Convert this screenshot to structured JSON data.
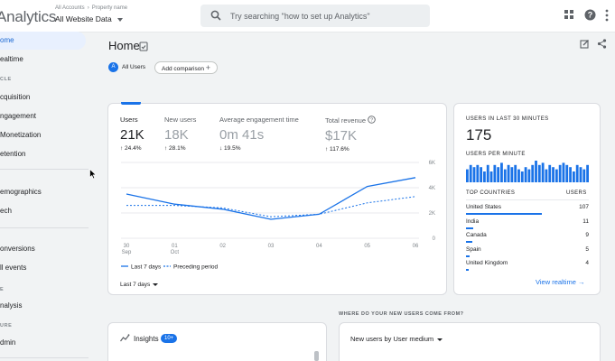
{
  "topbar": {
    "app_title": "Analytics",
    "breadcrumb": [
      "All Accounts",
      "Property name"
    ],
    "property": "All Website Data",
    "search_placeholder": "Try searching \"how to set up Analytics\"",
    "icons": [
      "apps-grid-icon",
      "help-icon",
      "account-menu-icon"
    ]
  },
  "sidebar": {
    "items": [
      {
        "label": "ome",
        "active": true
      },
      {
        "label": "ealtime"
      },
      {
        "label": "cquisition"
      },
      {
        "label": "ngagement"
      },
      {
        "label": "Monetization"
      },
      {
        "label": "etention"
      },
      {
        "label": "emographics"
      },
      {
        "label": "ech"
      },
      {
        "label": "onversions"
      },
      {
        "label": "ll events"
      },
      {
        "label": "nalysis"
      },
      {
        "label": "dmin"
      }
    ],
    "sections": [
      "CLE",
      "E",
      "URE"
    ]
  },
  "header": {
    "title": "Home",
    "segment_badge": "A",
    "segment_label": "All Users",
    "add_comparison": "Add comparison"
  },
  "metrics": [
    {
      "label": "Users",
      "value": "21K",
      "change": "↑ 24.4%"
    },
    {
      "label": "New users",
      "value": "18K",
      "change": "↑ 28.1%"
    },
    {
      "label": "Average engagement time",
      "value": "0m 41s",
      "change": "↓ 19.5%"
    },
    {
      "label": "Total revenue",
      "value": "$17K",
      "change": "↑ 117.6%"
    }
  ],
  "chart_data": {
    "type": "line",
    "x": [
      "30 Sep",
      "01 Oct",
      "02",
      "03",
      "04",
      "05",
      "06"
    ],
    "x_top": [
      "30",
      "01",
      "02",
      "03",
      "04",
      "05",
      "06"
    ],
    "x_bottom": [
      "Sep",
      "Oct",
      "",
      "",
      "",
      "",
      ""
    ],
    "ylim": [
      0,
      6000
    ],
    "y_ticks": [
      0,
      2000,
      4000,
      6000
    ],
    "y_tick_labels": [
      "0",
      "2K",
      "4K",
      "6K"
    ],
    "grid": true,
    "series": [
      {
        "name": "Last 7 days",
        "values": [
          3500,
          2700,
          2300,
          1500,
          1900,
          4100,
          4800
        ],
        "color": "#1a73e8",
        "dashed": false
      },
      {
        "name": "Preceding period",
        "values": [
          2600,
          2600,
          2400,
          1700,
          1900,
          2800,
          3300
        ],
        "color": "#1a73e8",
        "dashed": true
      }
    ]
  },
  "range_label": "Last 7 days",
  "realtime": {
    "title": "USERS IN LAST 30 MINUTES",
    "count": "175",
    "per_minute_label": "USERS PER MINUTE",
    "per_minute_values": [
      6,
      8,
      7,
      8,
      7,
      5,
      8,
      5,
      8,
      7,
      9,
      6,
      8,
      7,
      8,
      6,
      5,
      7,
      6,
      8,
      10,
      8,
      9,
      6,
      8,
      7,
      6,
      8,
      9,
      8,
      7,
      5,
      8,
      7,
      6,
      8
    ],
    "countries_header": "TOP COUNTRIES",
    "users_header": "USERS",
    "countries": [
      {
        "name": "United States",
        "users": "107",
        "share": 0.62
      },
      {
        "name": "India",
        "users": "11",
        "share": 0.06
      },
      {
        "name": "Canada",
        "users": "9",
        "share": 0.05
      },
      {
        "name": "Spain",
        "users": "5",
        "share": 0.03
      },
      {
        "name": "United Kingdom",
        "users": "4",
        "share": 0.02
      }
    ],
    "view_label": "View realtime"
  },
  "new_users_question": "WHERE DO YOUR NEW USERS COME FROM?",
  "insights": {
    "label": "Insights",
    "badge": "10+"
  },
  "new_users_selector": "New users by User medium"
}
